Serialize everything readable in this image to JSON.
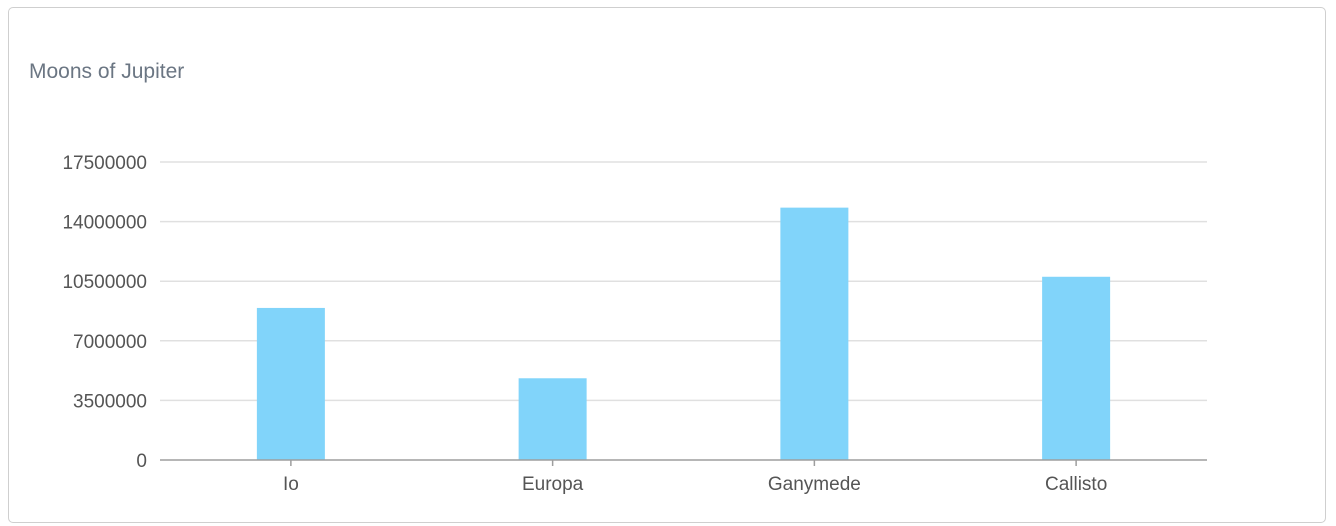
{
  "chart_data": {
    "type": "bar",
    "title": "Moons of Jupiter",
    "xlabel": "",
    "ylabel": "",
    "categories": [
      "Io",
      "Europa",
      "Ganymede",
      "Callisto"
    ],
    "values": [
      8930000,
      4800000,
      14820000,
      10760000
    ],
    "ylim": [
      0,
      17500000
    ],
    "yticks": [
      0,
      3500000,
      7000000,
      10500000,
      14000000,
      17500000
    ],
    "ytick_labels": [
      "0",
      "3500000",
      "7000000",
      "10500000",
      "14000000",
      "17500000"
    ],
    "grid": true,
    "legend": "none",
    "colors": {
      "bar": "#81d4fa",
      "grid": "#e0e0e0",
      "axis": "#9e9e9e",
      "title": "#6b7683",
      "tick_text": "#555555"
    }
  }
}
